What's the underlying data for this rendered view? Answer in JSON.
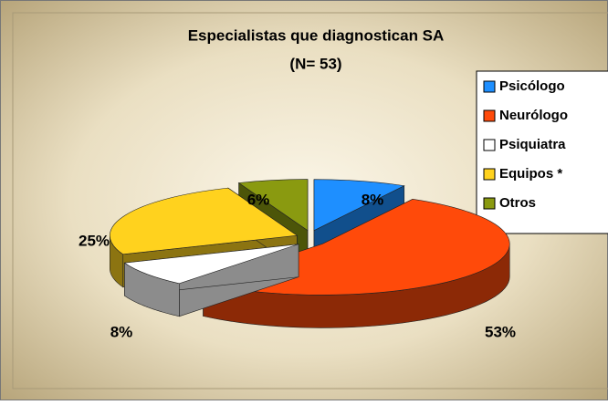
{
  "chart_data": {
    "type": "pie3d",
    "title": "Especialistas que diagnostican SA",
    "subtitle": "(N= 53)",
    "series": [
      {
        "name": "Psicólogo",
        "color": "#1e8fff"
      },
      {
        "name": "Neurólogo",
        "color": "#ff4a0a"
      },
      {
        "name": "Psiquiatra",
        "color": "#ffffff"
      },
      {
        "name": "Equipos *",
        "color": "#ffd21e"
      },
      {
        "name": "Otros",
        "color": "#8a9a10"
      }
    ],
    "values": [
      8,
      53,
      8,
      25,
      6
    ],
    "value_labels": [
      "8%",
      "53%",
      "8%",
      "25%",
      "6%"
    ],
    "legend": "right"
  }
}
